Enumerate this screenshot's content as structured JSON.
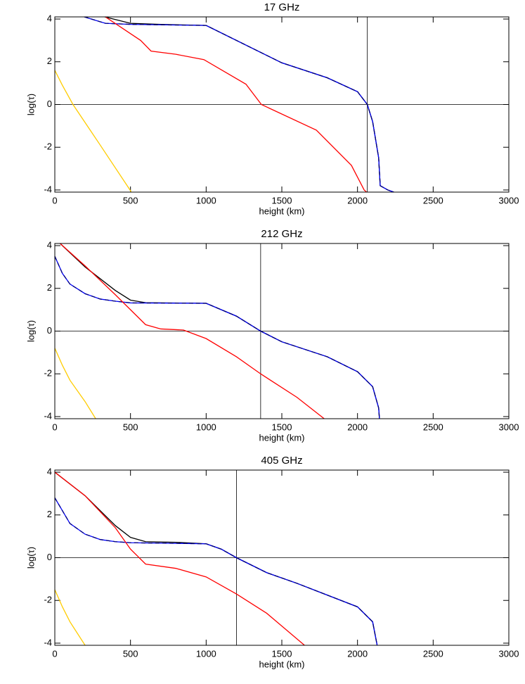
{
  "chart_data": [
    {
      "type": "line",
      "title": "17 GHz",
      "xlabel": "height (km)",
      "ylabel": "log(τ)",
      "xlim": [
        0,
        3000
      ],
      "ylim": [
        -4.1,
        4.1
      ],
      "xticks": [
        0,
        500,
        1000,
        1500,
        2000,
        2500,
        3000
      ],
      "yticks": [
        -4,
        -2,
        0,
        2,
        4
      ],
      "hline": 0,
      "vline": 2065,
      "series": [
        {
          "color": "#000000",
          "x": [
            330,
            500,
            700,
            1000,
            1500,
            1800,
            2000,
            2065,
            2100,
            2140,
            2150,
            2200,
            2240
          ],
          "values": [
            4.1,
            3.8,
            3.75,
            3.7,
            1.95,
            1.25,
            0.6,
            0,
            -0.8,
            -2.5,
            -3.8,
            -4.0,
            -4.1
          ]
        },
        {
          "color": "#0000ff",
          "x": [
            195,
            334,
            500,
            1000,
            1500,
            1800,
            2000,
            2065,
            2100,
            2140,
            2150,
            2200,
            2240
          ],
          "values": [
            4.1,
            3.8,
            3.75,
            3.7,
            1.95,
            1.25,
            0.6,
            0,
            -0.8,
            -2.5,
            -3.8,
            -4.0,
            -4.1
          ]
        },
        {
          "color": "#000080",
          "dash": true,
          "x": [
            195,
            334,
            500,
            1000,
            1500,
            1800,
            2000,
            2065,
            2100,
            2140,
            2150,
            2200,
            2240
          ],
          "values": [
            4.1,
            3.8,
            3.75,
            3.7,
            1.95,
            1.25,
            0.6,
            0,
            -0.8,
            -2.5,
            -3.8,
            -4.0,
            -4.1
          ]
        },
        {
          "color": "#ff0000",
          "x": [
            334,
            567,
            636,
            800,
            985,
            1263,
            1365,
            1728,
            1960,
            2044,
            2060
          ],
          "values": [
            4.1,
            3.0,
            2.5,
            2.35,
            2.1,
            0.95,
            0,
            -1.2,
            -2.85,
            -4.0,
            -4.1
          ]
        },
        {
          "color": "#ffcc00",
          "x": [
            0,
            50,
            120,
            300,
            497,
            505
          ],
          "values": [
            1.6,
            0.9,
            0,
            -1.9,
            -4.0,
            -4.1
          ]
        }
      ]
    },
    {
      "type": "line",
      "title": "212 GHz",
      "xlabel": "height (km)",
      "ylabel": "log(τ)",
      "xlim": [
        0,
        3000
      ],
      "ylim": [
        -4.1,
        4.1
      ],
      "xticks": [
        0,
        500,
        1000,
        1500,
        2000,
        2500,
        3000
      ],
      "yticks": [
        -4,
        -2,
        0,
        2,
        4
      ],
      "hline": 0,
      "vline": 1360,
      "series": [
        {
          "color": "#000000",
          "x": [
            35,
            200,
            400,
            500,
            600,
            1000,
            1200,
            1360,
            1500,
            1800,
            2000,
            2100,
            2140,
            2145
          ],
          "values": [
            4.1,
            3.0,
            1.9,
            1.45,
            1.33,
            1.3,
            0.7,
            0,
            -0.5,
            -1.2,
            -1.9,
            -2.6,
            -3.6,
            -4.1
          ]
        },
        {
          "color": "#0000ff",
          "x": [
            0,
            50,
            100,
            200,
            300,
            400,
            500,
            1000,
            1200,
            1360,
            1500,
            1800,
            2000,
            2100,
            2140,
            2145
          ],
          "values": [
            3.5,
            2.7,
            2.2,
            1.75,
            1.5,
            1.4,
            1.32,
            1.3,
            0.7,
            0,
            -0.5,
            -1.2,
            -1.9,
            -2.6,
            -3.6,
            -4.1
          ]
        },
        {
          "color": "#000080",
          "dash": true,
          "x": [
            0,
            50,
            100,
            200,
            300,
            400,
            500,
            1000,
            1200,
            1360,
            1500,
            1800,
            2000,
            2100,
            2140,
            2145
          ],
          "values": [
            3.5,
            2.7,
            2.2,
            1.75,
            1.5,
            1.4,
            1.32,
            1.3,
            0.7,
            0,
            -0.5,
            -1.2,
            -1.9,
            -2.6,
            -3.6,
            -4.1
          ]
        },
        {
          "color": "#ff0000",
          "x": [
            35,
            200,
            400,
            500,
            600,
            700,
            850,
            1000,
            1200,
            1360,
            1600,
            1780
          ],
          "values": [
            4.1,
            3.05,
            1.7,
            1.0,
            0.3,
            0.1,
            0.05,
            -0.35,
            -1.2,
            -2.0,
            -3.1,
            -4.1
          ]
        },
        {
          "color": "#ffcc00",
          "x": [
            0,
            50,
            100,
            200,
            270
          ],
          "values": [
            -0.8,
            -1.6,
            -2.3,
            -3.3,
            -4.1
          ]
        }
      ]
    },
    {
      "type": "line",
      "title": "405 GHz",
      "xlabel": "height (km)",
      "ylabel": "log(τ)",
      "xlim": [
        0,
        3000
      ],
      "ylim": [
        -4.1,
        4.1
      ],
      "xticks": [
        0,
        500,
        1000,
        1500,
        2000,
        2500,
        3000
      ],
      "yticks": [
        -4,
        -2,
        0,
        2,
        4
      ],
      "hline": 0,
      "vline": 1200,
      "series": [
        {
          "color": "#000000",
          "x": [
            0,
            200,
            400,
            500,
            600,
            800,
            1000,
            1100,
            1200,
            1400,
            1600,
            1800,
            2000,
            2100,
            2130
          ],
          "values": [
            4.0,
            2.9,
            1.5,
            0.95,
            0.75,
            0.72,
            0.65,
            0.4,
            0,
            -0.7,
            -1.2,
            -1.75,
            -2.3,
            -3.0,
            -4.1
          ]
        },
        {
          "color": "#0000ff",
          "x": [
            0,
            50,
            100,
            200,
            300,
            400,
            500,
            1000,
            1100,
            1200,
            1400,
            1600,
            1800,
            2000,
            2100,
            2130
          ],
          "values": [
            2.8,
            2.2,
            1.6,
            1.1,
            0.85,
            0.75,
            0.7,
            0.65,
            0.4,
            0,
            -0.7,
            -1.2,
            -1.75,
            -2.3,
            -3.0,
            -4.1
          ]
        },
        {
          "color": "#000080",
          "dash": true,
          "x": [
            0,
            50,
            100,
            200,
            300,
            400,
            500,
            1000,
            1100,
            1200,
            1400,
            1600,
            1800,
            2000,
            2100,
            2130
          ],
          "values": [
            2.8,
            2.2,
            1.6,
            1.1,
            0.85,
            0.75,
            0.7,
            0.65,
            0.4,
            0,
            -0.7,
            -1.2,
            -1.75,
            -2.3,
            -3.0,
            -4.1
          ]
        },
        {
          "color": "#ff0000",
          "x": [
            0,
            200,
            400,
            500,
            600,
            800,
            1000,
            1200,
            1400,
            1650
          ],
          "values": [
            4.0,
            2.9,
            1.4,
            0.4,
            -0.3,
            -0.5,
            -0.9,
            -1.7,
            -2.6,
            -4.1
          ]
        },
        {
          "color": "#ffcc00",
          "x": [
            0,
            50,
            100,
            200
          ],
          "values": [
            -1.5,
            -2.3,
            -3.0,
            -4.1
          ]
        }
      ]
    }
  ]
}
